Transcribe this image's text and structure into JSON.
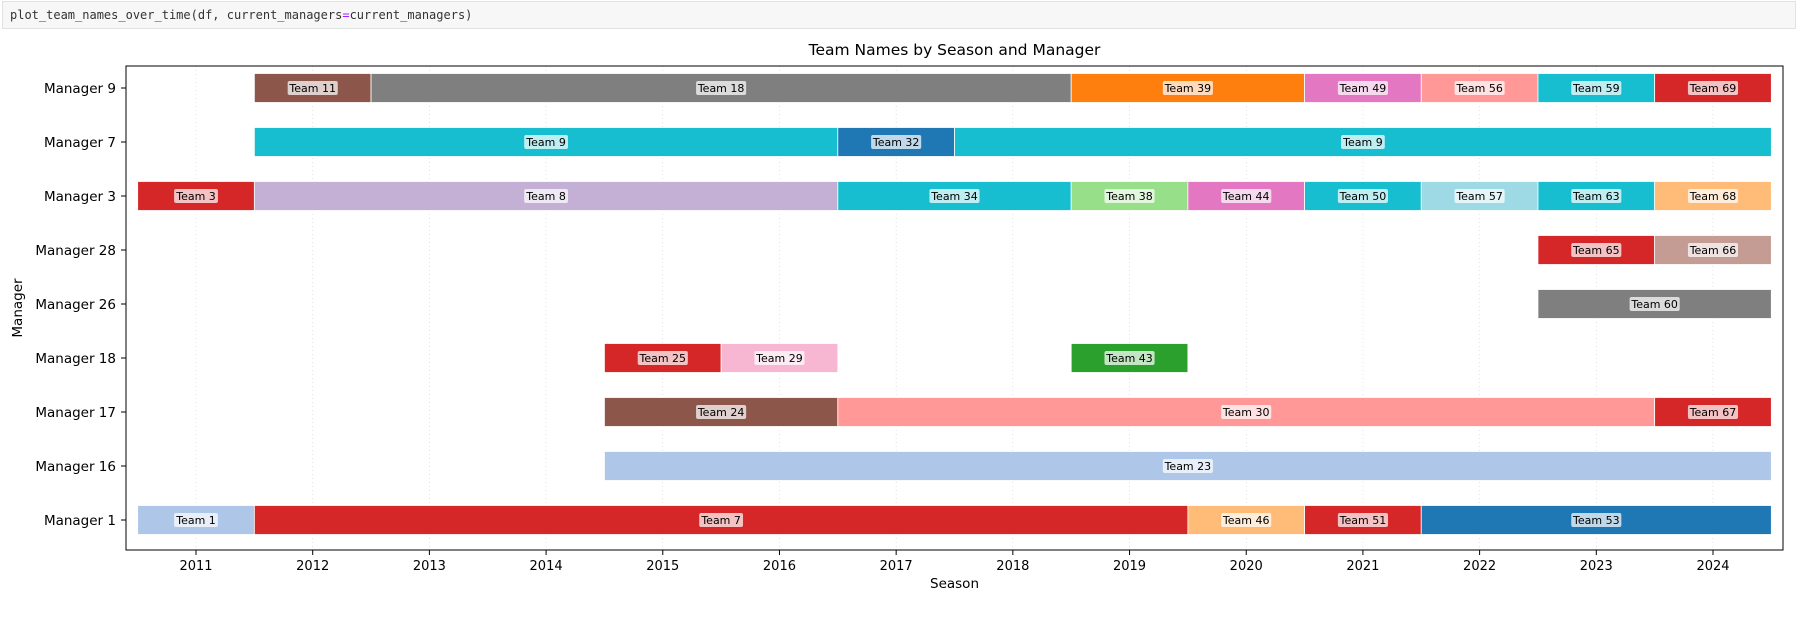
{
  "code_cell": {
    "prefix": "plot_team_names_over_time(df, current_managers",
    "operator": "=",
    "suffix": "current_managers)"
  },
  "chart_data": {
    "type": "bar",
    "orientation": "horizontal-timeline",
    "title": "Team Names by Season and Manager",
    "xlabel": "Season",
    "ylabel": "Manager",
    "xlim": [
      2010.4,
      2024.6
    ],
    "xticks": [
      2011,
      2012,
      2013,
      2014,
      2015,
      2016,
      2017,
      2018,
      2019,
      2020,
      2021,
      2022,
      2023,
      2024
    ],
    "grid": "vertical dotted",
    "managers": [
      "Manager 1",
      "Manager 16",
      "Manager 17",
      "Manager 18",
      "Manager 26",
      "Manager 28",
      "Manager 3",
      "Manager 7",
      "Manager 9"
    ],
    "segments": [
      {
        "manager": "Manager 9",
        "team": "Team 11",
        "start": 2012,
        "end": 2012,
        "color": "#8c564b"
      },
      {
        "manager": "Manager 9",
        "team": "Team 18",
        "start": 2013,
        "end": 2018,
        "color": "#7f7f7f"
      },
      {
        "manager": "Manager 9",
        "team": "Team 39",
        "start": 2019,
        "end": 2020,
        "color": "#ff7f0e"
      },
      {
        "manager": "Manager 9",
        "team": "Team 49",
        "start": 2021,
        "end": 2021,
        "color": "#e377c2"
      },
      {
        "manager": "Manager 9",
        "team": "Team 56",
        "start": 2022,
        "end": 2022,
        "color": "#ff9896"
      },
      {
        "manager": "Manager 9",
        "team": "Team 59",
        "start": 2023,
        "end": 2023,
        "color": "#17becf"
      },
      {
        "manager": "Manager 9",
        "team": "Team 69",
        "start": 2024,
        "end": 2024,
        "color": "#d62728"
      },
      {
        "manager": "Manager 7",
        "team": "Team 9",
        "start": 2012,
        "end": 2016,
        "color": "#17becf"
      },
      {
        "manager": "Manager 7",
        "team": "Team 32",
        "start": 2017,
        "end": 2017,
        "color": "#1f77b4"
      },
      {
        "manager": "Manager 7",
        "team": "Team 9",
        "start": 2018,
        "end": 2024,
        "color": "#17becf"
      },
      {
        "manager": "Manager 3",
        "team": "Team 3",
        "start": 2011,
        "end": 2011,
        "color": "#d62728"
      },
      {
        "manager": "Manager 3",
        "team": "Team 8",
        "start": 2012,
        "end": 2016,
        "color": "#c5b0d5"
      },
      {
        "manager": "Manager 3",
        "team": "Team 34",
        "start": 2017,
        "end": 2018,
        "color": "#17becf"
      },
      {
        "manager": "Manager 3",
        "team": "Team 38",
        "start": 2019,
        "end": 2019,
        "color": "#98df8a"
      },
      {
        "manager": "Manager 3",
        "team": "Team 44",
        "start": 2020,
        "end": 2020,
        "color": "#e377c2"
      },
      {
        "manager": "Manager 3",
        "team": "Team 50",
        "start": 2021,
        "end": 2021,
        "color": "#17becf"
      },
      {
        "manager": "Manager 3",
        "team": "Team 57",
        "start": 2022,
        "end": 2022,
        "color": "#9edae5"
      },
      {
        "manager": "Manager 3",
        "team": "Team 63",
        "start": 2023,
        "end": 2023,
        "color": "#17becf"
      },
      {
        "manager": "Manager 3",
        "team": "Team 68",
        "start": 2024,
        "end": 2024,
        "color": "#ffbb78"
      },
      {
        "manager": "Manager 28",
        "team": "Team 65",
        "start": 2023,
        "end": 2023,
        "color": "#d62728"
      },
      {
        "manager": "Manager 28",
        "team": "Team 66",
        "start": 2024,
        "end": 2024,
        "color": "#c49c94"
      },
      {
        "manager": "Manager 26",
        "team": "Team 60",
        "start": 2023,
        "end": 2024,
        "color": "#7f7f7f"
      },
      {
        "manager": "Manager 18",
        "team": "Team 25",
        "start": 2015,
        "end": 2015,
        "color": "#d62728"
      },
      {
        "manager": "Manager 18",
        "team": "Team 29",
        "start": 2016,
        "end": 2016,
        "color": "#f7b6d2"
      },
      {
        "manager": "Manager 18",
        "team": "Team 43",
        "start": 2019,
        "end": 2019,
        "color": "#2ca02c"
      },
      {
        "manager": "Manager 17",
        "team": "Team 24",
        "start": 2015,
        "end": 2016,
        "color": "#8c564b"
      },
      {
        "manager": "Manager 17",
        "team": "Team 30",
        "start": 2017,
        "end": 2023,
        "color": "#ff9896"
      },
      {
        "manager": "Manager 17",
        "team": "Team 67",
        "start": 2024,
        "end": 2024,
        "color": "#d62728"
      },
      {
        "manager": "Manager 16",
        "team": "Team 23",
        "start": 2015,
        "end": 2024,
        "color": "#aec7e8"
      },
      {
        "manager": "Manager 1",
        "team": "Team 1",
        "start": 2011,
        "end": 2011,
        "color": "#aec7e8"
      },
      {
        "manager": "Manager 1",
        "team": "Team 7",
        "start": 2012,
        "end": 2019,
        "color": "#d62728"
      },
      {
        "manager": "Manager 1",
        "team": "Team 46",
        "start": 2020,
        "end": 2020,
        "color": "#ffbb78"
      },
      {
        "manager": "Manager 1",
        "team": "Team 51",
        "start": 2021,
        "end": 2021,
        "color": "#d62728"
      },
      {
        "manager": "Manager 1",
        "team": "Team 53",
        "start": 2022,
        "end": 2024,
        "color": "#1f77b4"
      }
    ]
  }
}
